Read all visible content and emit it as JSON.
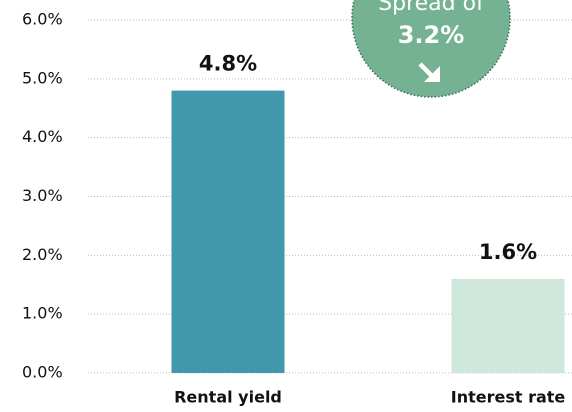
{
  "chart_data": {
    "type": "bar",
    "categories": [
      "Rental yield",
      "Interest rate"
    ],
    "values": [
      4.8,
      1.6
    ],
    "value_labels": [
      "4.8%",
      "1.6%"
    ],
    "colors": [
      "#4197ac",
      "#d0e7dc"
    ],
    "ylim": [
      0,
      6
    ],
    "yticks": [
      {
        "value": 0,
        "label": "0.0%"
      },
      {
        "value": 1,
        "label": "1.0%"
      },
      {
        "value": 2,
        "label": "2.0%"
      },
      {
        "value": 3,
        "label": "3.0%"
      },
      {
        "value": 4,
        "label": "4.0%"
      },
      {
        "value": 5,
        "label": "5.0%"
      },
      {
        "value": 6,
        "label": "6.0%"
      }
    ],
    "grid": true,
    "annotation": {
      "text": "Spread of",
      "label": "3.2%"
    }
  }
}
